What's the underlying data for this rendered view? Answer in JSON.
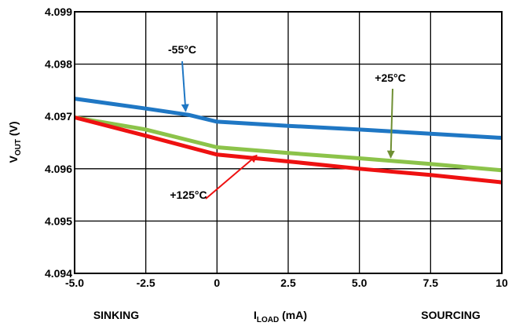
{
  "chart_data": {
    "type": "line",
    "xlabel_main": "I",
    "xlabel_sub": "LOAD",
    "xlabel_unit": " (mA)",
    "ylabel_main": "V",
    "ylabel_sub": "OUT",
    "ylabel_unit": " (V)",
    "x_ticks": [
      "-5.0",
      "-2.5",
      "0",
      "2.5",
      "5.0",
      "7.5",
      "10"
    ],
    "y_ticks": [
      "4.099",
      "4.098",
      "4.097",
      "4.096",
      "4.095",
      "4.094"
    ],
    "xlim": [
      -5,
      10
    ],
    "ylim": [
      4.094,
      4.099
    ],
    "grid": true,
    "left_caption": "SINKING",
    "right_caption": "SOURCING",
    "series": [
      {
        "name": "-55°C",
        "color": "#1f77c4",
        "x": [
          -5,
          -2.5,
          -1,
          0,
          2.5,
          5,
          7.5,
          10
        ],
        "y": [
          4.09734,
          4.09715,
          4.09703,
          4.0969,
          4.09682,
          4.09675,
          4.09667,
          4.09659
        ]
      },
      {
        "name": "+25°C",
        "color": "#8cc34a",
        "x": [
          -5,
          -2.5,
          0,
          2.5,
          5,
          7.5,
          10
        ],
        "y": [
          4.09698,
          4.09675,
          4.09641,
          4.0963,
          4.0962,
          4.09609,
          4.09597
        ]
      },
      {
        "name": "+125°C",
        "color": "#ee1111",
        "x": [
          -5,
          -2.5,
          0,
          2.5,
          5,
          7.5,
          10
        ],
        "y": [
          4.09698,
          4.09663,
          4.09627,
          4.09614,
          4.096,
          4.09588,
          4.09574
        ]
      }
    ],
    "annotations": [
      {
        "text": "-55°C",
        "series": 0,
        "arrow_color": "#1f77c4",
        "at_x": -1.1
      },
      {
        "text": "+25°C",
        "series": 1,
        "arrow_color": "#6f8f33",
        "at_x": 6.1
      },
      {
        "text": "+125°C",
        "series": 2,
        "arrow_color": "#ee1111",
        "at_x": 1.4
      }
    ]
  }
}
